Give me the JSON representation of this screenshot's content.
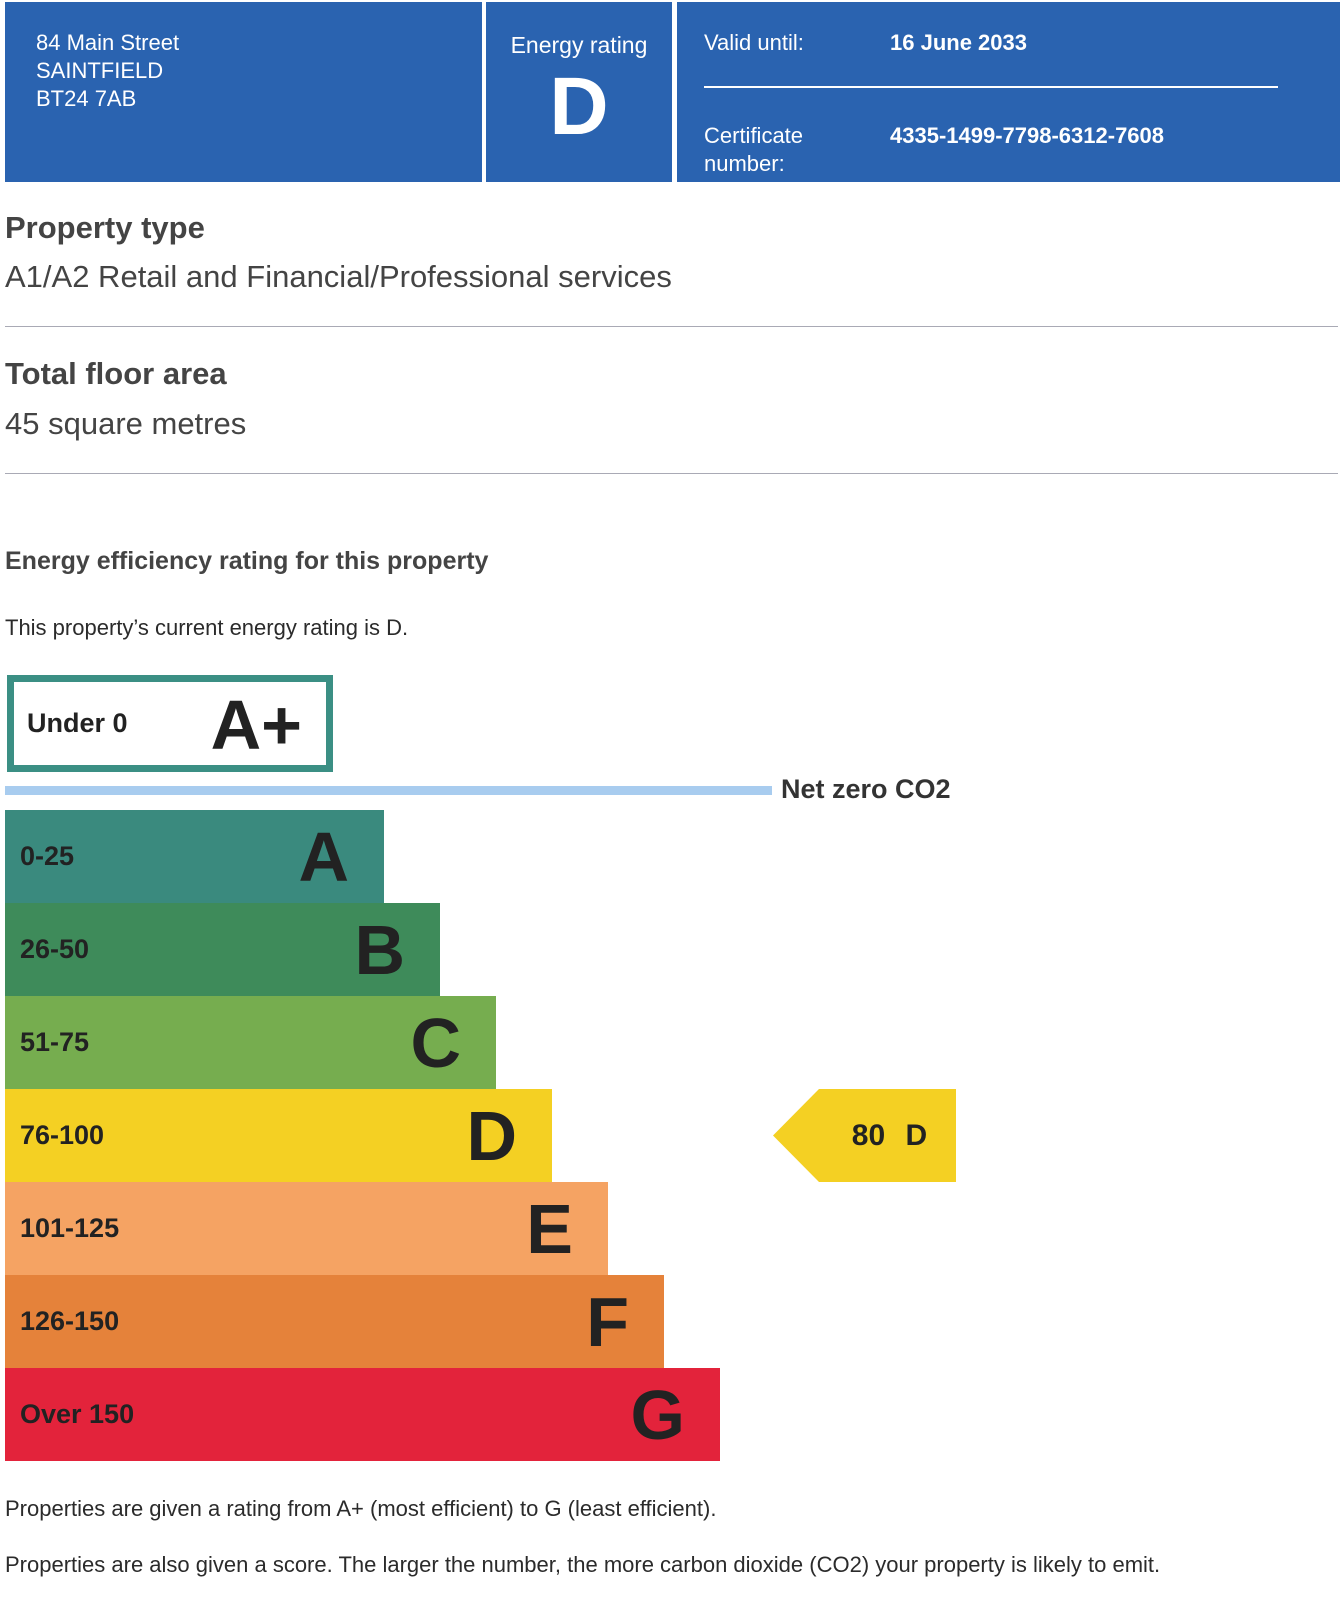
{
  "header": {
    "address": [
      "84 Main Street",
      "SAINTFIELD",
      "BT24 7AB"
    ],
    "energy_rating_label": "Energy rating",
    "energy_rating_letter": "D",
    "valid_until_label": "Valid until:",
    "valid_until_value": "16 June 2033",
    "certificate_label_lines": [
      "Certificate",
      "number:"
    ],
    "certificate_number": "4335-1499-7798-6312-7608"
  },
  "property_type": {
    "heading": "Property type",
    "value": "A1/A2 Retail and Financial/Professional services"
  },
  "floor_area": {
    "heading": "Total floor area",
    "value": "45 square metres"
  },
  "efficiency": {
    "heading": "Energy efficiency rating for this property",
    "current_text": "This property’s current energy rating is D.",
    "footnote_1": "Properties are given a rating from A+ (most efficient) to G (least efficient).",
    "footnote_2": "Properties are also given a score. The larger the number, the more carbon dioxide (CO2) your property is likely to emit."
  },
  "chart": {
    "aplus": {
      "range": "Under 0",
      "letter": "A+",
      "border_color": "#3b8f84"
    },
    "net_zero_label": "Net zero CO2",
    "net_zero_line_color": "#a8ccef",
    "bands": [
      {
        "range": "0-25",
        "letter": "A",
        "color": "#3a8a7e"
      },
      {
        "range": "26-50",
        "letter": "B",
        "color": "#3e8b5a"
      },
      {
        "range": "51-75",
        "letter": "C",
        "color": "#76ad4f"
      },
      {
        "range": "76-100",
        "letter": "D",
        "color": "#f4d023"
      },
      {
        "range": "101-125",
        "letter": "E",
        "color": "#f5a363"
      },
      {
        "range": "126-150",
        "letter": "F",
        "color": "#e5823a"
      },
      {
        "range": "Over 150",
        "letter": "G",
        "color": "#e3233b"
      }
    ],
    "current": {
      "score": "80",
      "letter": "D",
      "band_index": 3,
      "color": "#f4d023"
    }
  }
}
